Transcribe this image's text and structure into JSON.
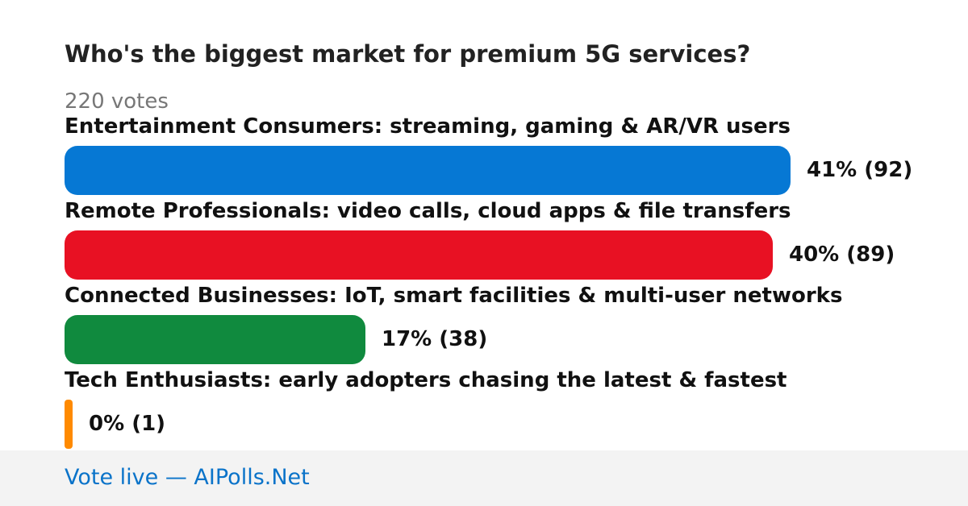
{
  "poll": {
    "question": "Who's the biggest market for premium 5G services?",
    "votes_text": "220 votes"
  },
  "chart_data": {
    "type": "bar",
    "orientation": "horizontal",
    "title": "Who's the biggest market for premium 5G services?",
    "total_votes": 220,
    "categories": [
      "Entertainment Consumers: streaming, gaming & AR/VR users",
      "Remote Professionals: video calls, cloud apps & file transfers",
      "Connected Businesses: IoT, smart facilities & multi-user networks",
      "Tech Enthusiasts: early adopters chasing the latest & fastest"
    ],
    "series": [
      {
        "values": [
          92,
          89,
          38,
          1
        ],
        "percent": [
          41,
          40,
          17,
          0
        ],
        "value_labels": [
          "41% (92)",
          "40% (89)",
          "17% (38)",
          "0% (1)"
        ],
        "colors": [
          "#0678d4",
          "#e81123",
          "#108a3e",
          "#ff8a00"
        ]
      }
    ]
  },
  "footer": {
    "link_text": "Vote live — AIPolls.Net"
  }
}
